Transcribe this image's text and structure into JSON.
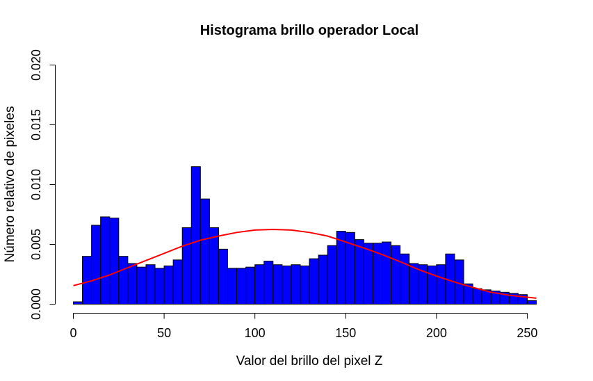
{
  "chart_data": {
    "type": "bar",
    "title": "Histograma brillo operador Local",
    "xlabel": "Valor del brillo del pixel Z",
    "ylabel": "Número relativo de pixeles",
    "xlim": [
      0,
      255
    ],
    "ylim": [
      0,
      0.02
    ],
    "x_ticks": [
      "0",
      "50",
      "100",
      "150",
      "200",
      "250"
    ],
    "y_ticks": [
      "0.000",
      "0.005",
      "0.010",
      "0.015",
      "0.020"
    ],
    "bin_width": 5,
    "bin_starts": [
      0,
      5,
      10,
      15,
      20,
      25,
      30,
      35,
      40,
      45,
      50,
      55,
      60,
      65,
      70,
      75,
      80,
      85,
      90,
      95,
      100,
      105,
      110,
      115,
      120,
      125,
      130,
      135,
      140,
      145,
      150,
      155,
      160,
      165,
      170,
      175,
      180,
      185,
      190,
      195,
      200,
      205,
      210,
      215,
      220,
      225,
      230,
      235,
      240,
      245,
      250
    ],
    "bar_width_last": 5,
    "values": [
      0.0002,
      0.004,
      0.0066,
      0.0073,
      0.0072,
      0.004,
      0.0034,
      0.0031,
      0.0033,
      0.003,
      0.0032,
      0.0037,
      0.0064,
      0.0115,
      0.0088,
      0.0064,
      0.0046,
      0.003,
      0.003,
      0.0031,
      0.0033,
      0.0036,
      0.0033,
      0.0032,
      0.0033,
      0.0032,
      0.0038,
      0.0041,
      0.0049,
      0.0061,
      0.006,
      0.0054,
      0.0051,
      0.0051,
      0.0052,
      0.0049,
      0.0042,
      0.0034,
      0.0033,
      0.0032,
      0.0033,
      0.0042,
      0.0037,
      0.0017,
      0.0013,
      0.0012,
      0.0011,
      0.001,
      0.0009,
      0.0008,
      0.0003
    ],
    "bar_color": "#0000ff",
    "curve": {
      "type": "normal-density",
      "color": "#ff0000",
      "x": [
        0,
        10,
        20,
        30,
        40,
        50,
        60,
        70,
        80,
        90,
        100,
        110,
        120,
        130,
        140,
        150,
        160,
        170,
        180,
        190,
        200,
        210,
        220,
        230,
        240,
        255
      ],
      "y": [
        0.00155,
        0.00195,
        0.00245,
        0.00305,
        0.00365,
        0.00425,
        0.00485,
        0.00535,
        0.0057,
        0.006,
        0.0062,
        0.00625,
        0.0062,
        0.006,
        0.0057,
        0.0052,
        0.0047,
        0.00415,
        0.00355,
        0.0029,
        0.00235,
        0.00185,
        0.0014,
        0.001,
        0.00075,
        0.0005
      ]
    }
  }
}
